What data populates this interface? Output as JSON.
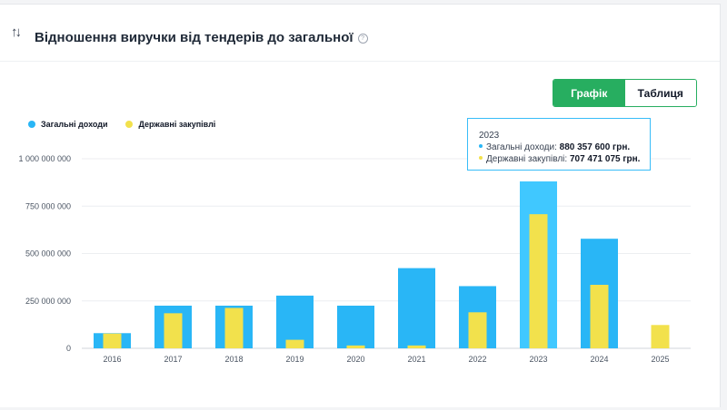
{
  "header": {
    "title": "Відношення виручки від тендерів до загальної",
    "sort_icon": "↑↓",
    "help_icon": "?"
  },
  "toggle": {
    "chart_label": "Графік",
    "table_label": "Таблиця"
  },
  "colors": {
    "total": "#29b6f6",
    "total_highlight": "#40c8ff",
    "gov": "#f2e14c",
    "active": "#27ae60"
  },
  "tooltip": {
    "year": "2023",
    "total_label": "Загальні доходи:",
    "total_value": "880 357 600 грн.",
    "gov_label": "Державні закупівлі:",
    "gov_value": "707 471 075 грн."
  },
  "chart_data": {
    "type": "bar",
    "title": "",
    "xlabel": "",
    "ylabel": "",
    "ylim": [
      0,
      1000000000
    ],
    "yticks": [
      0,
      250000000,
      500000000,
      750000000,
      1000000000
    ],
    "ytick_labels": [
      "0",
      "250 000 000",
      "500 000 000",
      "750 000 000",
      "1 000 000 000"
    ],
    "categories": [
      "2016",
      "2017",
      "2018",
      "2019",
      "2020",
      "2021",
      "2022",
      "2023",
      "2024",
      "2025"
    ],
    "legend_position": "top-left",
    "grid": true,
    "highlighted": "2023",
    "series": [
      {
        "name": "Загальні доходи",
        "values": [
          80000000,
          225000000,
          225000000,
          278000000,
          225000000,
          423000000,
          328000000,
          880357600,
          578000000,
          0
        ]
      },
      {
        "name": "Державні закупівлі",
        "values": [
          78000000,
          185000000,
          213000000,
          45000000,
          15000000,
          15000000,
          190000000,
          707471075,
          335000000,
          123000000
        ]
      }
    ]
  }
}
